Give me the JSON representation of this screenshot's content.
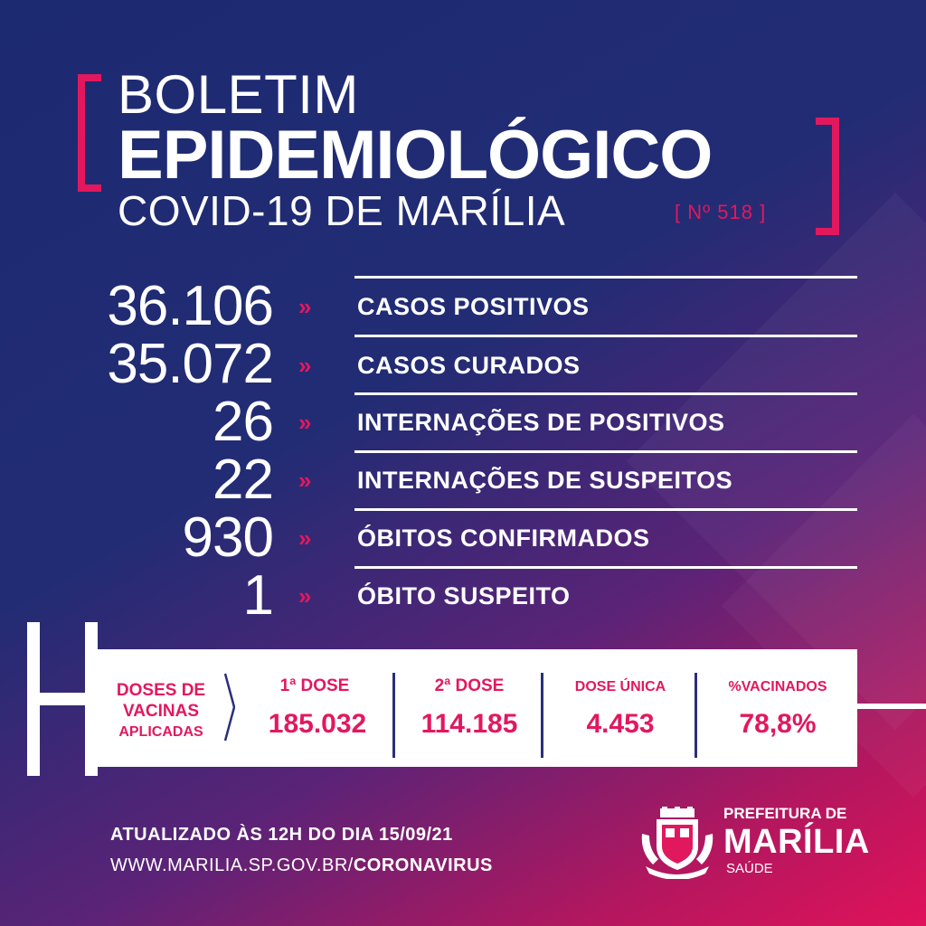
{
  "header": {
    "line1": "BOLETIM",
    "line2": "EPIDEMIOLÓGICO",
    "line3": "COVID-19 DE MARÍLIA",
    "number": "[ Nº 518 ]"
  },
  "stats": [
    {
      "value": "36.106",
      "label": "CASOS POSITIVOS"
    },
    {
      "value": "35.072",
      "label": "CASOS CURADOS"
    },
    {
      "value": "26",
      "label": "INTERNAÇÕES DE POSITIVOS"
    },
    {
      "value": "22",
      "label": "INTERNAÇÕES DE SUSPEITOS"
    },
    {
      "value": "930",
      "label": "ÓBITOS CONFIRMADOS"
    },
    {
      "value": "1",
      "label": "ÓBITO SUSPEITO"
    }
  ],
  "stat_arrow": "»",
  "vaccines": {
    "title_line1": "DOSES DE",
    "title_line2": "VACINAS",
    "title_line3": "APLICADAS",
    "columns": [
      {
        "label": "1ª DOSE",
        "value": "185.032"
      },
      {
        "label": "2ª DOSE",
        "value": "114.185"
      },
      {
        "label": "DOSE ÚNICA",
        "value": "4.453"
      },
      {
        "label": "%VACINADOS",
        "value": "78,8%"
      }
    ]
  },
  "footer": {
    "updated": "ATUALIZADO ÀS 12H DO DIA 15/09/21",
    "url_prefix": "WWW.MARILIA.SP.GOV.BR/",
    "url_suffix": "CORONAVIRUS"
  },
  "org": {
    "line1": "PREFEITURA DE",
    "line2": "MARÍLIA",
    "line3": "SAÚDE"
  },
  "colors": {
    "accent": "#e2185f",
    "navy": "#1c2a72"
  }
}
